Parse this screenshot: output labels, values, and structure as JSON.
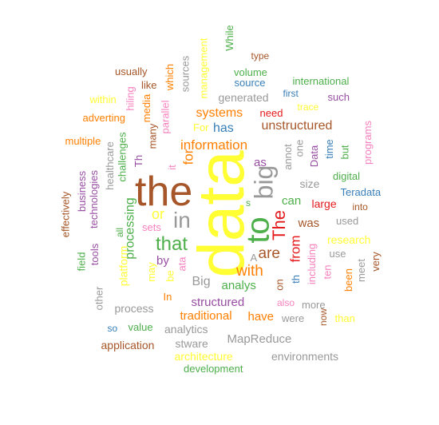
{
  "palette": {
    "brown": "#a65628",
    "yellow": "#ffff33",
    "green": "#4daf4a",
    "orange": "#ff7f00",
    "gray": "#999999",
    "purple": "#984ea3",
    "blue": "#377eb8",
    "red": "#e41a1c",
    "pink": "#f781bf"
  },
  "words": [
    {
      "text": "data",
      "color": "yellow"
    },
    {
      "text": "the",
      "color": "brown"
    },
    {
      "text": "to",
      "color": "green"
    },
    {
      "text": "big",
      "color": "gray"
    },
    {
      "text": "in",
      "color": "gray"
    },
    {
      "text": "that",
      "color": "green"
    },
    {
      "text": "The",
      "color": "red"
    },
    {
      "text": "with",
      "color": "orange"
    },
    {
      "text": "are",
      "color": "brown"
    },
    {
      "text": "information",
      "color": "orange"
    },
    {
      "text": "systems",
      "color": "orange"
    },
    {
      "text": "unstructured",
      "color": "brown"
    },
    {
      "text": "has",
      "color": "blue"
    },
    {
      "text": "or",
      "color": "yellow"
    },
    {
      "text": "for",
      "color": "orange"
    },
    {
      "text": "from",
      "color": "red"
    },
    {
      "text": "processing",
      "color": "green"
    },
    {
      "text": "structured",
      "color": "purple"
    },
    {
      "text": "Big",
      "color": "gray"
    },
    {
      "text": "traditional",
      "color": "orange"
    },
    {
      "text": "by",
      "color": "purple"
    },
    {
      "text": "analys",
      "color": "green"
    },
    {
      "text": "have",
      "color": "orange"
    },
    {
      "text": "was",
      "color": "brown"
    },
    {
      "text": "can",
      "color": "green"
    },
    {
      "text": "as",
      "color": "purple"
    },
    {
      "text": "MapReduce",
      "color": "gray"
    },
    {
      "text": "environments",
      "color": "gray"
    },
    {
      "text": "development",
      "color": "green"
    },
    {
      "text": "architecture",
      "color": "yellow"
    },
    {
      "text": "application",
      "color": "brown"
    },
    {
      "text": "analytics",
      "color": "gray"
    },
    {
      "text": "stware",
      "color": "gray"
    },
    {
      "text": "value",
      "color": "green"
    },
    {
      "text": "so",
      "color": "blue"
    },
    {
      "text": "process",
      "color": "gray"
    },
    {
      "text": "were",
      "color": "gray"
    },
    {
      "text": "more",
      "color": "gray"
    },
    {
      "text": "also",
      "color": "pink"
    },
    {
      "text": "than",
      "color": "yellow"
    },
    {
      "text": "research",
      "color": "yellow"
    },
    {
      "text": "use",
      "color": "gray"
    },
    {
      "text": "used",
      "color": "gray"
    },
    {
      "text": "large",
      "color": "red"
    },
    {
      "text": "Teradata",
      "color": "blue"
    },
    {
      "text": "into",
      "color": "brown"
    },
    {
      "text": "digital",
      "color": "green"
    },
    {
      "text": "size",
      "color": "gray"
    },
    {
      "text": "need",
      "color": "red"
    },
    {
      "text": "generated",
      "color": "gray"
    },
    {
      "text": "source",
      "color": "blue"
    },
    {
      "text": "volume",
      "color": "green"
    },
    {
      "text": "first",
      "color": "blue"
    },
    {
      "text": "trace",
      "color": "yellow"
    },
    {
      "text": "such",
      "color": "purple"
    },
    {
      "text": "international",
      "color": "green"
    },
    {
      "text": "type",
      "color": "brown"
    },
    {
      "text": "While",
      "color": "green"
    },
    {
      "text": "management",
      "color": "yellow"
    },
    {
      "text": "sources",
      "color": "gray"
    },
    {
      "text": "which",
      "color": "orange"
    },
    {
      "text": "usually",
      "color": "brown"
    },
    {
      "text": "like",
      "color": "brown"
    },
    {
      "text": "hiling",
      "color": "pink"
    },
    {
      "text": "within",
      "color": "yellow"
    },
    {
      "text": "adverting",
      "color": "orange"
    },
    {
      "text": "multiple",
      "color": "orange"
    },
    {
      "text": "media",
      "color": "orange"
    },
    {
      "text": "parallel",
      "color": "pink"
    },
    {
      "text": "For",
      "color": "yellow"
    },
    {
      "text": "many",
      "color": "brown"
    },
    {
      "text": "Th",
      "color": "purple"
    },
    {
      "text": "it",
      "color": "pink"
    },
    {
      "text": "challenges",
      "color": "green"
    },
    {
      "text": "healthcare",
      "color": "gray"
    },
    {
      "text": "business",
      "color": "purple"
    },
    {
      "text": "technologies",
      "color": "purple"
    },
    {
      "text": "effectively",
      "color": "brown"
    },
    {
      "text": "sets",
      "color": "pink"
    },
    {
      "text": "all",
      "color": "green"
    },
    {
      "text": "field",
      "color": "green"
    },
    {
      "text": "tools",
      "color": "purple"
    },
    {
      "text": "platform",
      "color": "yellow"
    },
    {
      "text": "may",
      "color": "yellow"
    },
    {
      "text": "other",
      "color": "gray"
    },
    {
      "text": "In",
      "color": "orange"
    },
    {
      "text": "be",
      "color": "yellow"
    },
    {
      "text": "ata",
      "color": "pink"
    },
    {
      "text": "A",
      "color": "gray"
    },
    {
      "text": "s",
      "color": "green"
    },
    {
      "text": "on",
      "color": "brown"
    },
    {
      "text": "th",
      "color": "blue"
    },
    {
      "text": "annot",
      "color": "gray"
    },
    {
      "text": "one",
      "color": "gray"
    },
    {
      "text": "Data",
      "color": "purple"
    },
    {
      "text": "time",
      "color": "blue"
    },
    {
      "text": "but",
      "color": "green"
    },
    {
      "text": "programs",
      "color": "pink"
    },
    {
      "text": "including",
      "color": "pink"
    },
    {
      "text": "ten",
      "color": "pink"
    },
    {
      "text": "been",
      "color": "orange"
    },
    {
      "text": "now",
      "color": "brown"
    },
    {
      "text": "meet",
      "color": "gray"
    },
    {
      "text": "very",
      "color": "brown"
    }
  ]
}
